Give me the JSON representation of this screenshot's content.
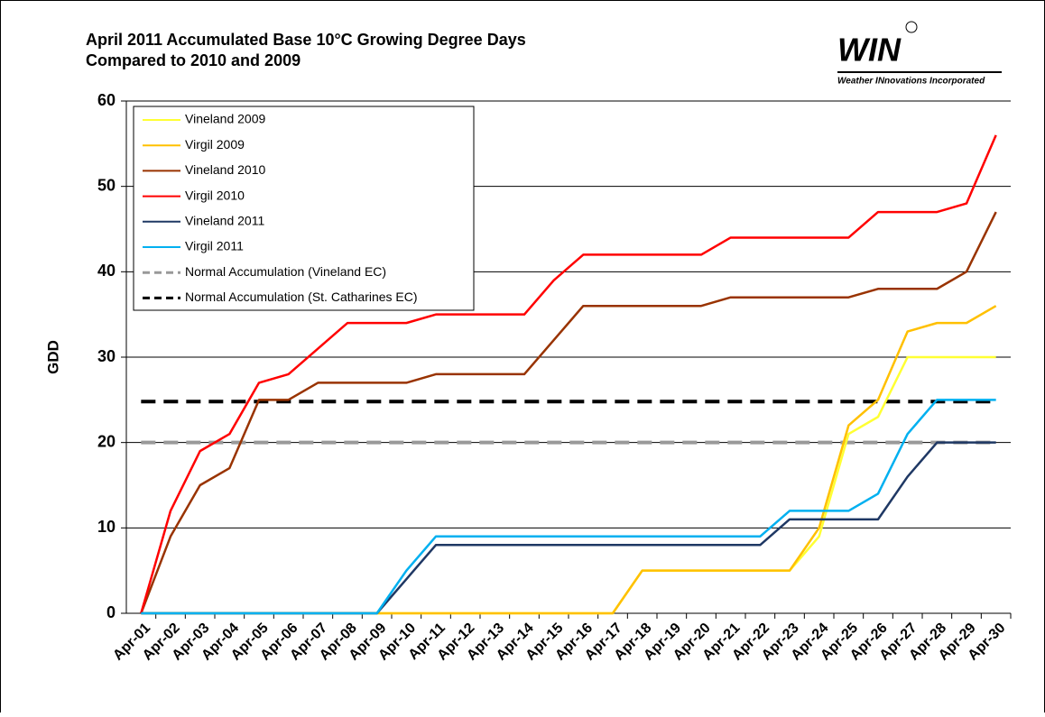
{
  "chart_data": {
    "type": "line",
    "title": "April 2011 Accumulated Base 10°C Growing Degree Days",
    "subtitle": "Compared to 2010 and 2009",
    "logo": {
      "name": "WIN",
      "tagline": "Weather INnovations Incorporated"
    },
    "ylabel": "GDD",
    "ylim": [
      0,
      60
    ],
    "yticks": [
      0,
      10,
      20,
      30,
      40,
      50,
      60
    ],
    "grid": true,
    "legend": "upper left",
    "categories": [
      "Apr-01",
      "Apr-02",
      "Apr-03",
      "Apr-04",
      "Apr-05",
      "Apr-06",
      "Apr-07",
      "Apr-08",
      "Apr-09",
      "Apr-10",
      "Apr-11",
      "Apr-12",
      "Apr-13",
      "Apr-14",
      "Apr-15",
      "Apr-16",
      "Apr-17",
      "Apr-18",
      "Apr-19",
      "Apr-20",
      "Apr-21",
      "Apr-22",
      "Apr-23",
      "Apr-24",
      "Apr-25",
      "Apr-26",
      "Apr-27",
      "Apr-28",
      "Apr-29",
      "Apr-30"
    ],
    "series": [
      {
        "name": "Vineland 2009",
        "color": "#ffff33",
        "values": [
          0,
          0,
          0,
          0,
          0,
          0,
          0,
          0,
          0,
          0,
          0,
          0,
          0,
          0,
          0,
          0,
          0,
          5,
          5,
          5,
          5,
          5,
          5,
          9,
          21,
          23,
          30,
          30,
          30,
          30
        ]
      },
      {
        "name": "Virgil 2009",
        "color": "#ffc000",
        "values": [
          0,
          0,
          0,
          0,
          0,
          0,
          0,
          0,
          0,
          0,
          0,
          0,
          0,
          0,
          0,
          0,
          0,
          5,
          5,
          5,
          5,
          5,
          5,
          10,
          22,
          25,
          33,
          34,
          34,
          36
        ]
      },
      {
        "name": "Vineland 2010",
        "color": "#993300",
        "values": [
          0,
          9,
          15,
          17,
          25,
          25,
          27,
          27,
          27,
          27,
          28,
          28,
          28,
          28,
          32,
          36,
          36,
          36,
          36,
          36,
          37,
          37,
          37,
          37,
          37,
          38,
          38,
          38,
          40,
          47
        ]
      },
      {
        "name": "Virgil 2010",
        "color": "#ff0000",
        "values": [
          0,
          12,
          19,
          21,
          27,
          28,
          31,
          34,
          34,
          34,
          35,
          35,
          35,
          35,
          39,
          42,
          42,
          42,
          42,
          42,
          44,
          44,
          44,
          44,
          44,
          47,
          47,
          47,
          48,
          56
        ]
      },
      {
        "name": "Vineland 2011",
        "color": "#1f3864",
        "values": [
          0,
          0,
          0,
          0,
          0,
          0,
          0,
          0,
          0,
          4,
          8,
          8,
          8,
          8,
          8,
          8,
          8,
          8,
          8,
          8,
          8,
          8,
          11,
          11,
          11,
          11,
          16,
          20,
          20,
          20
        ]
      },
      {
        "name": "Virgil 2011",
        "color": "#00b0f0",
        "values": [
          0,
          0,
          0,
          0,
          0,
          0,
          0,
          0,
          0,
          5,
          9,
          9,
          9,
          9,
          9,
          9,
          9,
          9,
          9,
          9,
          9,
          9,
          12,
          12,
          12,
          14,
          21,
          25,
          25,
          25
        ]
      },
      {
        "name": "Normal Accumulation (Vineland EC)",
        "color": "#999999",
        "dashed": true,
        "values": [
          20,
          20,
          20,
          20,
          20,
          20,
          20,
          20,
          20,
          20,
          20,
          20,
          20,
          20,
          20,
          20,
          20,
          20,
          20,
          20,
          20,
          20,
          20,
          20,
          20,
          20,
          20,
          20,
          20,
          20
        ]
      },
      {
        "name": "Normal Accumulation (St. Catharines EC)",
        "color": "#000000",
        "dashed": true,
        "values": [
          24.8,
          24.8,
          24.8,
          24.8,
          24.8,
          24.8,
          24.8,
          24.8,
          24.8,
          24.8,
          24.8,
          24.8,
          24.8,
          24.8,
          24.8,
          24.8,
          24.8,
          24.8,
          24.8,
          24.8,
          24.8,
          24.8,
          24.8,
          24.8,
          24.8,
          24.8,
          24.8,
          24.8,
          24.8,
          24.8
        ]
      }
    ]
  }
}
